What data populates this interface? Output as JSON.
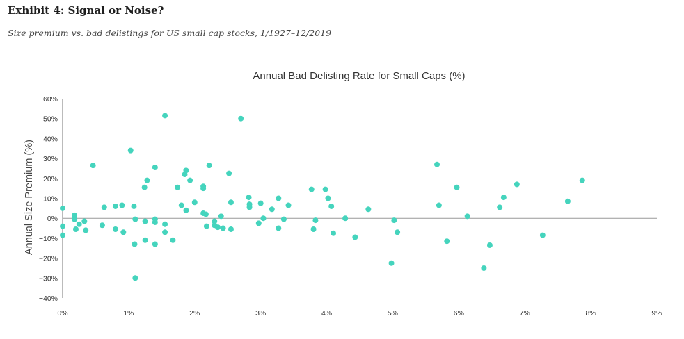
{
  "exhibit": {
    "title": "Exhibit 4: Signal or Noise?",
    "subtitle": "Size premium vs. bad delistings for US small cap stocks, 1/1927–12/2019"
  },
  "colors": {
    "point": "#45d4bd",
    "axis": "#777777",
    "zero_line": "#999999"
  },
  "chart_data": {
    "type": "scatter",
    "title": "Annual Bad Delisting Rate for Small Caps (%)",
    "xlabel": "",
    "ylabel": "Annual Size Premium (%)",
    "xlim": [
      0,
      9
    ],
    "ylim": [
      -40,
      60
    ],
    "x_ticks": [
      0,
      1,
      2,
      3,
      4,
      5,
      6,
      7,
      8,
      9
    ],
    "x_tick_labels": [
      "0%",
      "1%",
      "2%",
      "3%",
      "4%",
      "5%",
      "6%",
      "7%",
      "8%",
      "9%"
    ],
    "y_ticks": [
      60,
      50,
      40,
      30,
      20,
      10,
      0,
      -10,
      -20,
      -30,
      -40
    ],
    "y_tick_labels": [
      "60%",
      "50%",
      "40%",
      "30%",
      "20%",
      "10%",
      "0%",
      "−10%",
      "−20%",
      "−30%",
      "−40%"
    ],
    "zero_line": true,
    "grid": false,
    "points": [
      {
        "x": 0.0,
        "y": 5
      },
      {
        "x": 0.0,
        "y": -4
      },
      {
        "x": 0.0,
        "y": -8.5
      },
      {
        "x": 0.18,
        "y": 1.5
      },
      {
        "x": 0.18,
        "y": -0.5
      },
      {
        "x": 0.2,
        "y": -5.5
      },
      {
        "x": 0.25,
        "y": -3
      },
      {
        "x": 0.33,
        "y": -1.5
      },
      {
        "x": 0.35,
        "y": -6
      },
      {
        "x": 0.46,
        "y": 26.5
      },
      {
        "x": 0.6,
        "y": -3.5
      },
      {
        "x": 0.63,
        "y": 5.5
      },
      {
        "x": 0.8,
        "y": 6
      },
      {
        "x": 0.8,
        "y": -5.5
      },
      {
        "x": 0.9,
        "y": 6.5
      },
      {
        "x": 0.92,
        "y": -7
      },
      {
        "x": 1.03,
        "y": 34
      },
      {
        "x": 1.08,
        "y": 6
      },
      {
        "x": 1.1,
        "y": -0.5
      },
      {
        "x": 1.09,
        "y": -13
      },
      {
        "x": 1.1,
        "y": -30
      },
      {
        "x": 1.24,
        "y": 15.5
      },
      {
        "x": 1.28,
        "y": 19
      },
      {
        "x": 1.25,
        "y": -1.5
      },
      {
        "x": 1.25,
        "y": -11
      },
      {
        "x": 1.4,
        "y": 25.5
      },
      {
        "x": 1.4,
        "y": -0.5
      },
      {
        "x": 1.4,
        "y": -2
      },
      {
        "x": 1.4,
        "y": -13
      },
      {
        "x": 1.55,
        "y": 51.5
      },
      {
        "x": 1.55,
        "y": -3
      },
      {
        "x": 1.55,
        "y": -7
      },
      {
        "x": 1.67,
        "y": -11
      },
      {
        "x": 1.74,
        "y": 15.5
      },
      {
        "x": 1.8,
        "y": 6.5
      },
      {
        "x": 1.85,
        "y": 22
      },
      {
        "x": 1.87,
        "y": 24
      },
      {
        "x": 1.87,
        "y": 4
      },
      {
        "x": 1.93,
        "y": 19
      },
      {
        "x": 2.0,
        "y": 8
      },
      {
        "x": 2.13,
        "y": 16
      },
      {
        "x": 2.13,
        "y": 15
      },
      {
        "x": 2.13,
        "y": 2.5
      },
      {
        "x": 2.17,
        "y": 2
      },
      {
        "x": 2.18,
        "y": -4
      },
      {
        "x": 2.22,
        "y": 26.5
      },
      {
        "x": 2.3,
        "y": -1.5
      },
      {
        "x": 2.3,
        "y": -3.5
      },
      {
        "x": 2.35,
        "y": -4.5
      },
      {
        "x": 2.4,
        "y": 1
      },
      {
        "x": 2.43,
        "y": -5
      },
      {
        "x": 2.52,
        "y": 22.5
      },
      {
        "x": 2.55,
        "y": 8
      },
      {
        "x": 2.55,
        "y": -5.5
      },
      {
        "x": 2.7,
        "y": 50
      },
      {
        "x": 2.82,
        "y": 10.5
      },
      {
        "x": 2.83,
        "y": 7
      },
      {
        "x": 2.83,
        "y": 5.5
      },
      {
        "x": 2.97,
        "y": -2.5
      },
      {
        "x": 3.0,
        "y": 7.5
      },
      {
        "x": 3.04,
        "y": 0
      },
      {
        "x": 3.17,
        "y": 4.5
      },
      {
        "x": 3.27,
        "y": 10
      },
      {
        "x": 3.27,
        "y": -5
      },
      {
        "x": 3.35,
        "y": -0.5
      },
      {
        "x": 3.42,
        "y": 6.5
      },
      {
        "x": 3.77,
        "y": 14.5
      },
      {
        "x": 3.8,
        "y": -5.5
      },
      {
        "x": 3.83,
        "y": -1
      },
      {
        "x": 3.98,
        "y": 14.5
      },
      {
        "x": 4.02,
        "y": 10
      },
      {
        "x": 4.07,
        "y": 6
      },
      {
        "x": 4.1,
        "y": -7.5
      },
      {
        "x": 4.28,
        "y": 0
      },
      {
        "x": 4.43,
        "y": -9.5
      },
      {
        "x": 4.63,
        "y": 4.5
      },
      {
        "x": 4.98,
        "y": -22.5
      },
      {
        "x": 5.02,
        "y": -1
      },
      {
        "x": 5.07,
        "y": -7
      },
      {
        "x": 5.67,
        "y": 27
      },
      {
        "x": 5.7,
        "y": 6.5
      },
      {
        "x": 5.82,
        "y": -11.5
      },
      {
        "x": 5.97,
        "y": 15.5
      },
      {
        "x": 6.13,
        "y": 1
      },
      {
        "x": 6.38,
        "y": -25
      },
      {
        "x": 6.47,
        "y": -13.5
      },
      {
        "x": 6.62,
        "y": 5.5
      },
      {
        "x": 6.68,
        "y": 10.5
      },
      {
        "x": 6.88,
        "y": 17
      },
      {
        "x": 7.27,
        "y": -8.5
      },
      {
        "x": 7.65,
        "y": 8.5
      },
      {
        "x": 7.87,
        "y": 19
      }
    ]
  }
}
